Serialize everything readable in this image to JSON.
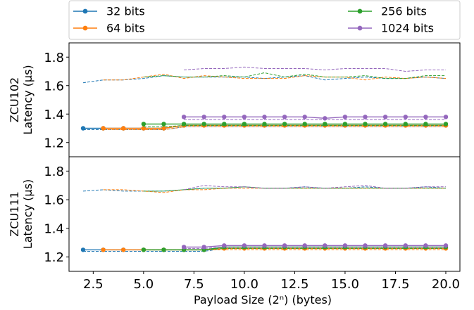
{
  "chart_data": {
    "type": "line",
    "legend": {
      "placement": "top",
      "entries": [
        {
          "label": "32 bits",
          "color": "#1f77b4"
        },
        {
          "label": "64 bits",
          "color": "#ff7f0e"
        },
        {
          "label": "256 bits",
          "color": "#2ca02c"
        },
        {
          "label": "1024 bits",
          "color": "#9467bd"
        }
      ]
    },
    "xlabel": "Payload Size (2ⁿ) (bytes)",
    "xlim": [
      1.3,
      20.7
    ],
    "xticks": [
      "2.5",
      "5.0",
      "7.5",
      "10.0",
      "12.5",
      "15.0",
      "17.5",
      "20.0"
    ],
    "xtick_values": [
      2.5,
      5.0,
      7.5,
      10.0,
      12.5,
      15.0,
      17.5,
      20.0
    ],
    "grid": false,
    "panels": [
      {
        "name": "ZCU102",
        "ylabel_line1": "ZCU102",
        "ylabel_line2": "Latency (µs)",
        "ylim": [
          1.1,
          1.9
        ],
        "yticks": [
          "1.2",
          "1.4",
          "1.6",
          "1.8"
        ],
        "ytick_values": [
          1.2,
          1.4,
          1.6,
          1.8
        ],
        "series": [
          {
            "name": "32 bits",
            "color": "#1f77b4",
            "x": [
              2,
              3,
              4,
              5,
              6,
              7,
              8,
              9,
              10,
              11,
              12,
              13,
              14,
              15,
              16,
              17,
              18,
              19,
              20
            ],
            "y": [
              1.3,
              1.3,
              1.3,
              1.3,
              1.3,
              1.32,
              1.32,
              1.32,
              1.32,
              1.32,
              1.32,
              1.32,
              1.32,
              1.32,
              1.32,
              1.32,
              1.32,
              1.32,
              1.32
            ],
            "dashed_upper": [
              1.62,
              1.64,
              1.64,
              1.65,
              1.67,
              1.66,
              1.66,
              1.66,
              1.66,
              1.65,
              1.66,
              1.67,
              1.64,
              1.65,
              1.66,
              1.65,
              1.65,
              1.66,
              1.65
            ],
            "dashed_lower": [
              1.29,
              1.29,
              1.29,
              1.29,
              1.29,
              1.31,
              1.31,
              1.31,
              1.31,
              1.31,
              1.31,
              1.31,
              1.31,
              1.31,
              1.31,
              1.31,
              1.31,
              1.31,
              1.31
            ]
          },
          {
            "name": "64 bits",
            "color": "#ff7f0e",
            "x": [
              3,
              4,
              5,
              6,
              7,
              8,
              9,
              10,
              11,
              12,
              13,
              14,
              15,
              16,
              17,
              18,
              19,
              20
            ],
            "y": [
              1.3,
              1.3,
              1.3,
              1.3,
              1.32,
              1.32,
              1.32,
              1.32,
              1.32,
              1.32,
              1.32,
              1.32,
              1.32,
              1.32,
              1.32,
              1.32,
              1.32,
              1.32
            ],
            "dashed_upper": [
              1.64,
              1.64,
              1.66,
              1.68,
              1.65,
              1.67,
              1.66,
              1.65,
              1.65,
              1.65,
              1.67,
              1.66,
              1.66,
              1.64,
              1.66,
              1.65,
              1.66,
              1.65
            ],
            "dashed_lower": [
              1.29,
              1.29,
              1.29,
              1.29,
              1.31,
              1.31,
              1.31,
              1.31,
              1.31,
              1.31,
              1.31,
              1.31,
              1.31,
              1.31,
              1.31,
              1.31,
              1.31,
              1.31
            ]
          },
          {
            "name": "256 bits",
            "color": "#2ca02c",
            "x": [
              5,
              6,
              7,
              8,
              9,
              10,
              11,
              12,
              13,
              14,
              15,
              16,
              17,
              18,
              19,
              20
            ],
            "y": [
              1.33,
              1.33,
              1.33,
              1.33,
              1.33,
              1.33,
              1.33,
              1.33,
              1.33,
              1.33,
              1.33,
              1.33,
              1.33,
              1.33,
              1.33,
              1.33
            ],
            "dashed_upper": [
              1.66,
              1.67,
              1.66,
              1.66,
              1.67,
              1.66,
              1.69,
              1.66,
              1.68,
              1.66,
              1.66,
              1.67,
              1.65,
              1.65,
              1.67,
              1.67
            ],
            "dashed_lower": [
              1.31,
              1.31,
              1.32,
              1.32,
              1.32,
              1.32,
              1.32,
              1.32,
              1.32,
              1.32,
              1.32,
              1.32,
              1.32,
              1.32,
              1.32,
              1.32
            ]
          },
          {
            "name": "1024 bits",
            "color": "#9467bd",
            "x": [
              7,
              8,
              9,
              10,
              11,
              12,
              13,
              14,
              15,
              16,
              17,
              18,
              19,
              20
            ],
            "y": [
              1.38,
              1.38,
              1.38,
              1.38,
              1.38,
              1.38,
              1.38,
              1.37,
              1.38,
              1.38,
              1.38,
              1.38,
              1.38,
              1.38
            ],
            "dashed_upper": [
              1.71,
              1.72,
              1.72,
              1.73,
              1.72,
              1.72,
              1.72,
              1.71,
              1.72,
              1.72,
              1.72,
              1.7,
              1.71,
              1.71
            ],
            "dashed_lower": [
              1.36,
              1.36,
              1.36,
              1.36,
              1.36,
              1.36,
              1.36,
              1.36,
              1.36,
              1.36,
              1.36,
              1.36,
              1.36,
              1.36
            ]
          }
        ]
      },
      {
        "name": "ZCU111",
        "ylabel_line1": "ZCU111",
        "ylabel_line2": "Latency (µs)",
        "ylim": [
          1.1,
          1.9
        ],
        "yticks": [
          "1.2",
          "1.4",
          "1.6",
          "1.8"
        ],
        "ytick_values": [
          1.2,
          1.4,
          1.6,
          1.8
        ],
        "series": [
          {
            "name": "32 bits",
            "color": "#1f77b4",
            "x": [
              2,
              3,
              4,
              5,
              6,
              7,
              8,
              9,
              10,
              11,
              12,
              13,
              14,
              15,
              16,
              17,
              18,
              19,
              20
            ],
            "y": [
              1.25,
              1.25,
              1.25,
              1.25,
              1.25,
              1.25,
              1.25,
              1.27,
              1.27,
              1.27,
              1.27,
              1.27,
              1.27,
              1.27,
              1.27,
              1.27,
              1.27,
              1.27,
              1.27
            ],
            "dashed_upper": [
              1.66,
              1.67,
              1.66,
              1.66,
              1.66,
              1.67,
              1.68,
              1.68,
              1.69,
              1.68,
              1.68,
              1.69,
              1.68,
              1.68,
              1.69,
              1.68,
              1.68,
              1.69,
              1.68
            ],
            "dashed_lower": [
              1.24,
              1.24,
              1.24,
              1.24,
              1.24,
              1.24,
              1.24,
              1.26,
              1.26,
              1.26,
              1.26,
              1.26,
              1.26,
              1.26,
              1.26,
              1.26,
              1.26,
              1.26,
              1.26
            ]
          },
          {
            "name": "64 bits",
            "color": "#ff7f0e",
            "x": [
              3,
              4,
              5,
              6,
              7,
              8,
              9,
              10,
              11,
              12,
              13,
              14,
              15,
              16,
              17,
              18,
              19,
              20
            ],
            "y": [
              1.25,
              1.25,
              1.25,
              1.25,
              1.25,
              1.25,
              1.26,
              1.26,
              1.26,
              1.26,
              1.26,
              1.26,
              1.26,
              1.26,
              1.26,
              1.26,
              1.26,
              1.26
            ],
            "dashed_upper": [
              1.67,
              1.67,
              1.66,
              1.65,
              1.67,
              1.67,
              1.68,
              1.68,
              1.68,
              1.68,
              1.68,
              1.68,
              1.68,
              1.68,
              1.68,
              1.68,
              1.68,
              1.68
            ],
            "dashed_lower": [
              1.25,
              1.25,
              1.25,
              1.25,
              1.25,
              1.25,
              1.25,
              1.25,
              1.25,
              1.25,
              1.25,
              1.25,
              1.25,
              1.25,
              1.25,
              1.25,
              1.25,
              1.25
            ]
          },
          {
            "name": "256 bits",
            "color": "#2ca02c",
            "x": [
              5,
              6,
              7,
              8,
              9,
              10,
              11,
              12,
              13,
              14,
              15,
              16,
              17,
              18,
              19,
              20
            ],
            "y": [
              1.25,
              1.25,
              1.25,
              1.25,
              1.27,
              1.27,
              1.27,
              1.27,
              1.27,
              1.27,
              1.27,
              1.27,
              1.27,
              1.27,
              1.27,
              1.27
            ],
            "dashed_upper": [
              1.66,
              1.66,
              1.67,
              1.68,
              1.68,
              1.69,
              1.68,
              1.68,
              1.68,
              1.68,
              1.68,
              1.68,
              1.68,
              1.68,
              1.68,
              1.68
            ],
            "dashed_lower": [
              1.25,
              1.25,
              1.25,
              1.25,
              1.26,
              1.26,
              1.26,
              1.26,
              1.26,
              1.26,
              1.26,
              1.26,
              1.26,
              1.26,
              1.26,
              1.26
            ]
          },
          {
            "name": "1024 bits",
            "color": "#9467bd",
            "x": [
              7,
              8,
              9,
              10,
              11,
              12,
              13,
              14,
              15,
              16,
              17,
              18,
              19,
              20
            ],
            "y": [
              1.27,
              1.27,
              1.28,
              1.28,
              1.28,
              1.28,
              1.28,
              1.28,
              1.28,
              1.28,
              1.28,
              1.28,
              1.28,
              1.28
            ],
            "dashed_upper": [
              1.67,
              1.7,
              1.69,
              1.69,
              1.68,
              1.68,
              1.69,
              1.68,
              1.69,
              1.7,
              1.68,
              1.68,
              1.69,
              1.69
            ],
            "dashed_lower": [
              1.26,
              1.26,
              1.27,
              1.27,
              1.27,
              1.27,
              1.27,
              1.27,
              1.27,
              1.27,
              1.27,
              1.27,
              1.27,
              1.27
            ]
          }
        ]
      }
    ]
  }
}
